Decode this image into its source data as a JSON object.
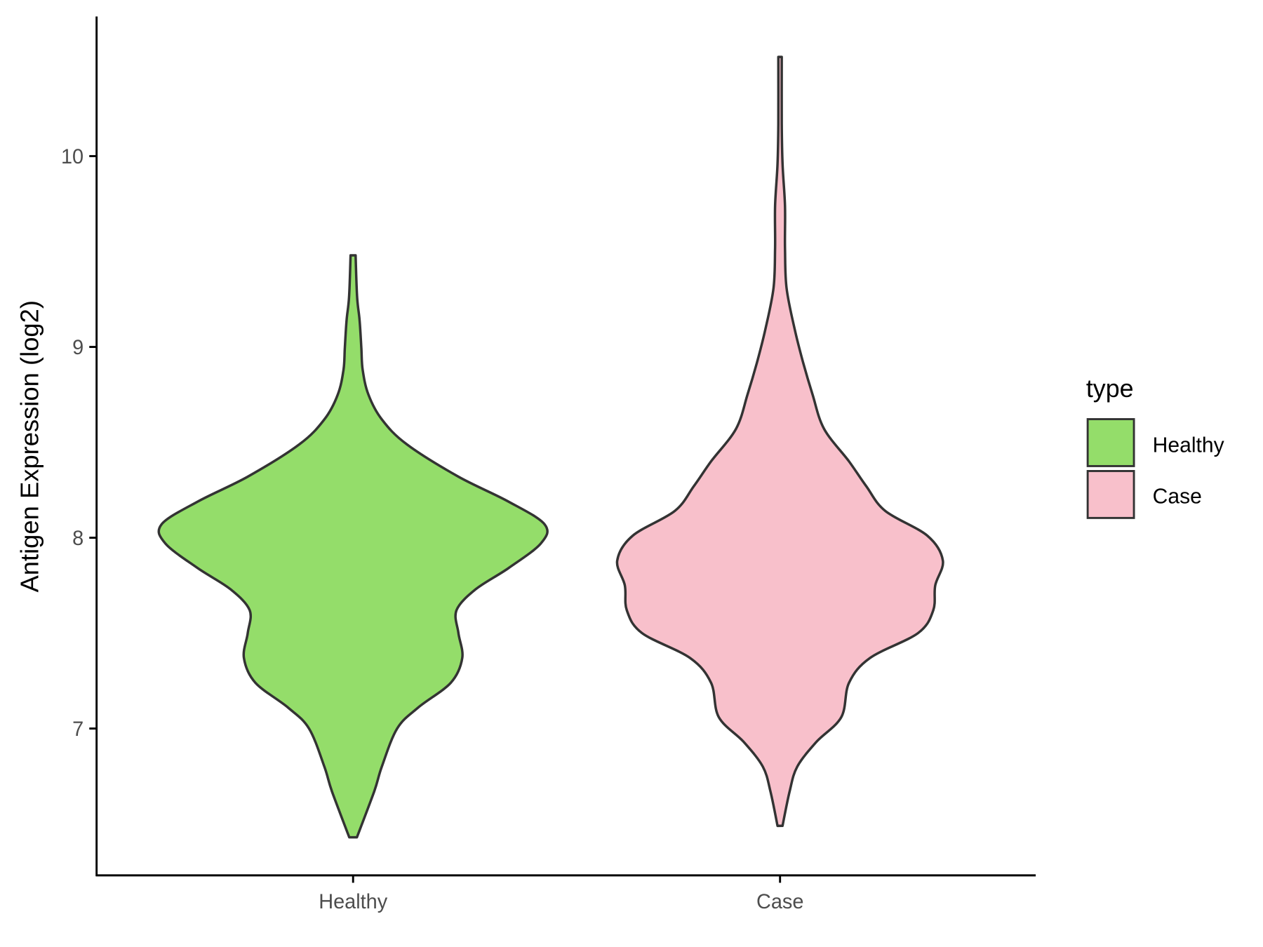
{
  "chart_data": {
    "type": "violin",
    "title": "",
    "xlabel": "",
    "ylabel": "Antigen Expression (log2)",
    "ylim": [
      6.24,
      10.75
    ],
    "yticks": [
      7,
      8,
      9,
      10
    ],
    "ytick_labels": [
      "7",
      "8",
      "9",
      "10"
    ],
    "categories": [
      "Healthy",
      "Case"
    ],
    "grid": false,
    "legend": {
      "title": "type",
      "position": "right",
      "entries": [
        "Healthy",
        "Case"
      ]
    },
    "colors": {
      "Healthy": "#94DD6A",
      "Case": "#F8C0CB",
      "outline": "#333333"
    },
    "series": [
      {
        "name": "Healthy",
        "density_profile": [
          [
            6.43,
            0.02
          ],
          [
            6.67,
            0.11
          ],
          [
            6.8,
            0.15
          ],
          [
            7.0,
            0.23
          ],
          [
            7.11,
            0.34
          ],
          [
            7.24,
            0.51
          ],
          [
            7.37,
            0.57
          ],
          [
            7.5,
            0.55
          ],
          [
            7.62,
            0.54
          ],
          [
            7.73,
            0.64
          ],
          [
            7.84,
            0.81
          ],
          [
            7.97,
            0.98
          ],
          [
            8.07,
            1.0
          ],
          [
            8.19,
            0.81
          ],
          [
            8.32,
            0.55
          ],
          [
            8.49,
            0.28
          ],
          [
            8.62,
            0.15
          ],
          [
            8.75,
            0.08
          ],
          [
            8.88,
            0.05
          ],
          [
            9.0,
            0.043
          ],
          [
            9.14,
            0.034
          ],
          [
            9.26,
            0.021
          ],
          [
            9.48,
            0.013
          ]
        ]
      },
      {
        "name": "Case",
        "density_profile": [
          [
            6.49,
            0.013
          ],
          [
            6.67,
            0.05
          ],
          [
            6.8,
            0.09
          ],
          [
            6.93,
            0.19
          ],
          [
            7.06,
            0.32
          ],
          [
            7.24,
            0.36
          ],
          [
            7.37,
            0.47
          ],
          [
            7.5,
            0.72
          ],
          [
            7.62,
            0.8
          ],
          [
            7.75,
            0.81
          ],
          [
            7.88,
            0.85
          ],
          [
            8.01,
            0.77
          ],
          [
            8.14,
            0.55
          ],
          [
            8.27,
            0.45
          ],
          [
            8.4,
            0.36
          ],
          [
            8.57,
            0.23
          ],
          [
            8.75,
            0.17
          ],
          [
            8.92,
            0.12
          ],
          [
            9.09,
            0.077
          ],
          [
            9.31,
            0.034
          ],
          [
            9.52,
            0.026
          ],
          [
            9.74,
            0.026
          ],
          [
            9.96,
            0.013
          ],
          [
            10.17,
            0.009
          ],
          [
            10.52,
            0.009
          ]
        ]
      }
    ]
  }
}
